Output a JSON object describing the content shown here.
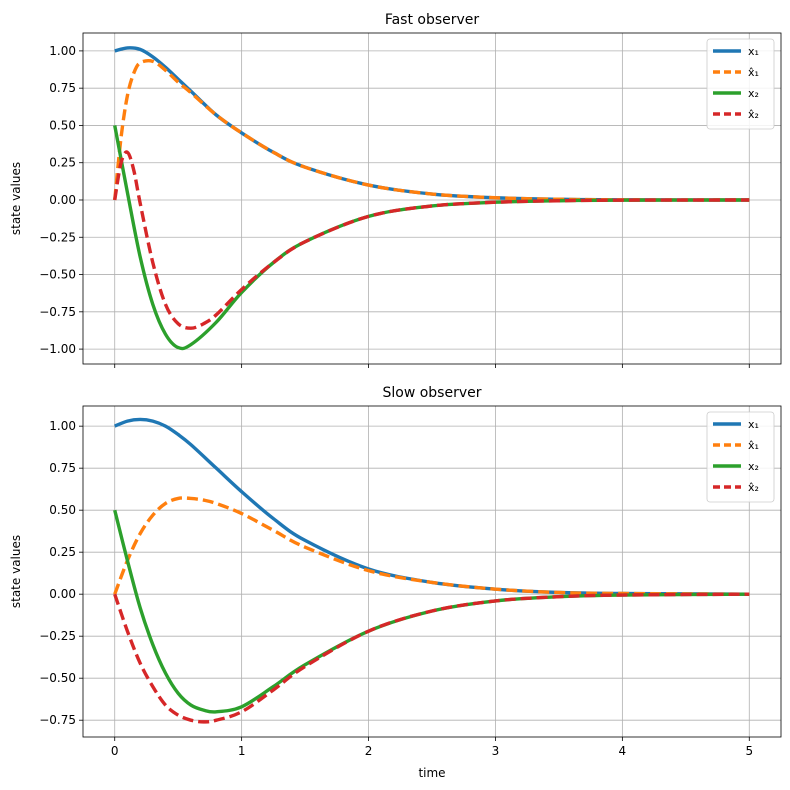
{
  "chart_data": [
    {
      "type": "line",
      "title": "Fast observer",
      "xlabel": "",
      "ylabel": "state values",
      "xlim": [
        -0.25,
        5.25
      ],
      "ylim": [
        -1.1,
        1.12
      ],
      "xticks": [
        "0",
        "1",
        "2",
        "3",
        "4",
        "5"
      ],
      "xtick_labels_visible": false,
      "yticks": [
        "1.00",
        "0.75",
        "0.50",
        "0.25",
        "0.00",
        "−0.25",
        "−0.50",
        "−0.75",
        "−1.00"
      ],
      "legend": "top-right",
      "series": [
        {
          "name": "x₁",
          "color": "#1f77b4",
          "style": "solid",
          "x": [
            0,
            0.1,
            0.2,
            0.3,
            0.4,
            0.5,
            0.6,
            0.8,
            1.0,
            1.25,
            1.5,
            2.0,
            2.5,
            3.0,
            3.5,
            4.0,
            5.0
          ],
          "y": [
            1.0,
            1.02,
            1.01,
            0.96,
            0.89,
            0.81,
            0.73,
            0.57,
            0.45,
            0.32,
            0.22,
            0.1,
            0.04,
            0.015,
            0.005,
            0.001,
            0.0
          ]
        },
        {
          "name": "x̂₁",
          "color": "#ff7f0e",
          "style": "dashed",
          "x": [
            0,
            0.05,
            0.1,
            0.15,
            0.2,
            0.3,
            0.4,
            0.5,
            0.6,
            0.8,
            1.0,
            1.25,
            1.5,
            2.0,
            2.5,
            3.0,
            3.5,
            4.0,
            5.0
          ],
          "y": [
            0.0,
            0.42,
            0.7,
            0.85,
            0.92,
            0.93,
            0.87,
            0.79,
            0.72,
            0.57,
            0.45,
            0.32,
            0.22,
            0.1,
            0.04,
            0.015,
            0.005,
            0.001,
            0.0
          ]
        },
        {
          "name": "x₂",
          "color": "#2ca02c",
          "style": "solid",
          "x": [
            0,
            0.1,
            0.2,
            0.3,
            0.4,
            0.5,
            0.6,
            0.8,
            1.0,
            1.25,
            1.5,
            2.0,
            2.5,
            3.0,
            3.5,
            4.0,
            5.0
          ],
          "y": [
            0.5,
            0.05,
            -0.38,
            -0.7,
            -0.9,
            -0.99,
            -0.97,
            -0.82,
            -0.62,
            -0.42,
            -0.28,
            -0.11,
            -0.04,
            -0.015,
            -0.005,
            -0.001,
            0.0
          ]
        },
        {
          "name": "x̂₂",
          "color": "#d62728",
          "style": "dashed",
          "x": [
            0,
            0.05,
            0.1,
            0.15,
            0.2,
            0.3,
            0.4,
            0.5,
            0.6,
            0.7,
            0.8,
            1.0,
            1.25,
            1.5,
            2.0,
            2.5,
            3.0,
            3.5,
            4.0,
            5.0
          ],
          "y": [
            0.0,
            0.25,
            0.32,
            0.2,
            -0.02,
            -0.42,
            -0.7,
            -0.83,
            -0.86,
            -0.83,
            -0.77,
            -0.6,
            -0.42,
            -0.28,
            -0.11,
            -0.04,
            -0.015,
            -0.005,
            -0.001,
            0.0
          ]
        }
      ]
    },
    {
      "type": "line",
      "title": "Slow observer",
      "xlabel": "time",
      "ylabel": "state values",
      "xlim": [
        -0.25,
        5.25
      ],
      "ylim": [
        -0.85,
        1.12
      ],
      "xticks": [
        "0",
        "1",
        "2",
        "3",
        "4",
        "5"
      ],
      "xtick_labels_visible": true,
      "yticks": [
        "1.00",
        "0.75",
        "0.50",
        "0.25",
        "0.00",
        "−0.25",
        "−0.50",
        "−0.75"
      ],
      "legend": "top-right",
      "series": [
        {
          "name": "x₁",
          "color": "#1f77b4",
          "style": "solid",
          "x": [
            0,
            0.1,
            0.2,
            0.3,
            0.4,
            0.5,
            0.6,
            0.8,
            1.0,
            1.25,
            1.5,
            2.0,
            2.5,
            3.0,
            3.5,
            4.0,
            5.0
          ],
          "y": [
            1.0,
            1.03,
            1.04,
            1.03,
            1.0,
            0.95,
            0.89,
            0.75,
            0.61,
            0.45,
            0.32,
            0.15,
            0.07,
            0.03,
            0.01,
            0.004,
            0.0
          ]
        },
        {
          "name": "x̂₁",
          "color": "#ff7f0e",
          "style": "dashed",
          "x": [
            0,
            0.1,
            0.2,
            0.3,
            0.4,
            0.5,
            0.6,
            0.7,
            0.8,
            1.0,
            1.25,
            1.5,
            2.0,
            2.5,
            3.0,
            3.5,
            4.0,
            5.0
          ],
          "y": [
            0.0,
            0.2,
            0.36,
            0.47,
            0.54,
            0.57,
            0.57,
            0.56,
            0.54,
            0.48,
            0.38,
            0.28,
            0.14,
            0.07,
            0.03,
            0.01,
            0.004,
            0.0
          ]
        },
        {
          "name": "x₂",
          "color": "#2ca02c",
          "style": "solid",
          "x": [
            0,
            0.1,
            0.2,
            0.3,
            0.4,
            0.5,
            0.6,
            0.7,
            0.8,
            1.0,
            1.25,
            1.5,
            2.0,
            2.5,
            3.0,
            3.5,
            4.0,
            5.0
          ],
          "y": [
            0.5,
            0.2,
            -0.08,
            -0.3,
            -0.47,
            -0.59,
            -0.66,
            -0.69,
            -0.7,
            -0.67,
            -0.55,
            -0.42,
            -0.22,
            -0.1,
            -0.04,
            -0.015,
            -0.005,
            0.0
          ]
        },
        {
          "name": "x̂₂",
          "color": "#d62728",
          "style": "dashed",
          "x": [
            0,
            0.1,
            0.2,
            0.3,
            0.4,
            0.5,
            0.6,
            0.7,
            0.8,
            1.0,
            1.25,
            1.5,
            2.0,
            2.5,
            3.0,
            3.5,
            4.0,
            5.0
          ],
          "y": [
            0.0,
            -0.22,
            -0.41,
            -0.55,
            -0.66,
            -0.72,
            -0.75,
            -0.76,
            -0.75,
            -0.7,
            -0.57,
            -0.43,
            -0.22,
            -0.1,
            -0.04,
            -0.015,
            -0.005,
            0.0
          ]
        }
      ]
    }
  ]
}
